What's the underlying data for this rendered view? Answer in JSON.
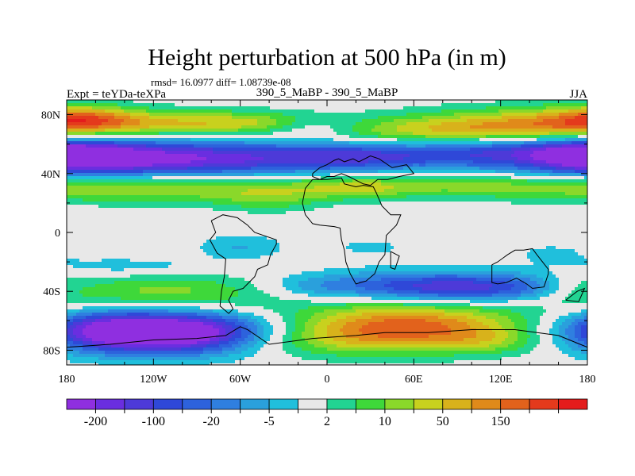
{
  "chart_data": {
    "type": "heatmap",
    "title": "Height perturbation at 500 hPa (in m)",
    "stats_label": "rmsd= 16.0977 diff= 1.08739e-08",
    "left_label": "Expt = teYDa-teXPa",
    "center_label": "390_5_MaBP - 390_5_MaBP",
    "right_label": "JJA",
    "x_range": [
      -180,
      180
    ],
    "y_range": [
      -90,
      90
    ],
    "x_ticks": [
      {
        "value": -180,
        "label": "180"
      },
      {
        "value": -120,
        "label": "120W"
      },
      {
        "value": -60,
        "label": "60W"
      },
      {
        "value": 0,
        "label": "0"
      },
      {
        "value": 60,
        "label": "60E"
      },
      {
        "value": 120,
        "label": "120E"
      },
      {
        "value": 180,
        "label": "180"
      }
    ],
    "y_ticks": [
      {
        "value": 80,
        "label": "80N"
      },
      {
        "value": 40,
        "label": "40N"
      },
      {
        "value": 0,
        "label": "0"
      },
      {
        "value": -40,
        "label": "40S"
      },
      {
        "value": -80,
        "label": "80S"
      }
    ],
    "colorbar": {
      "colors": [
        "#8f2fe0",
        "#6a2ee0",
        "#4d3ad8",
        "#2f48d8",
        "#2d62dc",
        "#2f7fe0",
        "#2aa0dc",
        "#20bfdc",
        "#e8e8e8",
        "#22d492",
        "#3ed83a",
        "#8ad82a",
        "#c8d11e",
        "#d8b21b",
        "#e08a1a",
        "#e2621c",
        "#e43a1c",
        "#e41c1c"
      ],
      "labels": [
        {
          "after": 1,
          "text": "-200"
        },
        {
          "after": 3,
          "text": "-100"
        },
        {
          "after": 5,
          "text": "-20"
        },
        {
          "after": 7,
          "text": "-5"
        },
        {
          "after": 9,
          "text": "2"
        },
        {
          "after": 11,
          "text": "10"
        },
        {
          "after": 13,
          "text": "50"
        },
        {
          "after": 15,
          "text": "150"
        }
      ]
    },
    "anomalies": [
      {
        "lon": -120,
        "lat": 50,
        "slon": 90,
        "slat": 9,
        "amp": -9
      },
      {
        "lon": -175,
        "lat": 52,
        "slon": 30,
        "slat": 8,
        "amp": -5
      },
      {
        "lon": -100,
        "lat": 74,
        "slon": 55,
        "slat": 6,
        "amp": 4
      },
      {
        "lon": -170,
        "lat": 78,
        "slon": 25,
        "slat": 6,
        "amp": 4
      },
      {
        "lon": -40,
        "lat": 75,
        "slon": 35,
        "slat": 5,
        "amp": 2
      },
      {
        "lon": 150,
        "lat": 74,
        "slon": 60,
        "slat": 8,
        "amp": 5
      },
      {
        "lon": 75,
        "lat": 68,
        "slon": 70,
        "slat": 7,
        "amp": 4
      },
      {
        "lon": -10,
        "lat": 72,
        "slon": 25,
        "slat": 5,
        "amp": -3
      },
      {
        "lon": 40,
        "lat": 52,
        "slon": 50,
        "slat": 7,
        "amp": -5
      },
      {
        "lon": 130,
        "lat": 58,
        "slon": 50,
        "slat": 6,
        "amp": -3
      },
      {
        "lon": -115,
        "lat": 30,
        "slon": 80,
        "slat": 7,
        "amp": 4
      },
      {
        "lon": -40,
        "lat": 22,
        "slon": 25,
        "slat": 6,
        "amp": 2
      },
      {
        "lon": 80,
        "lat": 32,
        "slon": 80,
        "slat": 6,
        "amp": 3
      },
      {
        "lon": 20,
        "lat": 30,
        "slon": 25,
        "slat": 5,
        "amp": 2
      },
      {
        "lon": -135,
        "lat": -24,
        "slon": 45,
        "slat": 5,
        "amp": -2
      },
      {
        "lon": -60,
        "lat": -10,
        "slon": 20,
        "slat": 6,
        "amp": -2
      },
      {
        "lon": 30,
        "lat": -10,
        "slon": 25,
        "slat": 6,
        "amp": -1
      },
      {
        "lon": 155,
        "lat": -14,
        "slon": 25,
        "slat": 6,
        "amp": -1
      },
      {
        "lon": -120,
        "lat": -40,
        "slon": 75,
        "slat": 10,
        "amp": 4
      },
      {
        "lon": -10,
        "lat": -38,
        "slon": 20,
        "slat": 6,
        "amp": -1
      },
      {
        "lon": 50,
        "lat": -36,
        "slon": 70,
        "slat": 7,
        "amp": -4
      },
      {
        "lon": 115,
        "lat": -38,
        "slon": 55,
        "slat": 7,
        "amp": -5
      },
      {
        "lon": 172,
        "lat": -38,
        "slon": 20,
        "slat": 8,
        "amp": 2
      },
      {
        "lon": -105,
        "lat": -68,
        "slon": 45,
        "slat": 10,
        "amp": -12
      },
      {
        "lon": -160,
        "lat": -66,
        "slon": 30,
        "slat": 10,
        "amp": -5
      },
      {
        "lon": 55,
        "lat": -64,
        "slon": 55,
        "slat": 11,
        "amp": 8
      },
      {
        "lon": -10,
        "lat": -74,
        "slon": 50,
        "slat": 8,
        "amp": 2
      },
      {
        "lon": 110,
        "lat": -74,
        "slon": 25,
        "slat": 6,
        "amp": 2
      }
    ],
    "coastlines": [
      [
        [
          -10,
          40
        ],
        [
          -5,
          44
        ],
        [
          0,
          46
        ],
        [
          5,
          49
        ],
        [
          8,
          50
        ],
        [
          12,
          48
        ],
        [
          18,
          50
        ],
        [
          22,
          48
        ],
        [
          30,
          52
        ],
        [
          36,
          50
        ],
        [
          45,
          44
        ],
        [
          55,
          46
        ],
        [
          60,
          40
        ],
        [
          50,
          38
        ],
        [
          42,
          36
        ],
        [
          35,
          36
        ],
        [
          30,
          32
        ],
        [
          25,
          33
        ],
        [
          15,
          38
        ],
        [
          10,
          40
        ],
        [
          5,
          38
        ],
        [
          0,
          38
        ],
        [
          -5,
          36
        ],
        [
          -10,
          38
        ],
        [
          -10,
          40
        ]
      ],
      [
        [
          -10,
          36
        ],
        [
          -15,
          30
        ],
        [
          -17,
          20
        ],
        [
          -15,
          12
        ],
        [
          -10,
          6
        ],
        [
          -5,
          5
        ],
        [
          5,
          4
        ],
        [
          9,
          3
        ],
        [
          10,
          -5
        ],
        [
          12,
          -12
        ],
        [
          13,
          -20
        ],
        [
          16,
          -28
        ],
        [
          20,
          -35
        ],
        [
          27,
          -33
        ],
        [
          33,
          -28
        ],
        [
          36,
          -20
        ],
        [
          40,
          -15
        ],
        [
          41,
          -2
        ],
        [
          48,
          5
        ],
        [
          51,
          12
        ],
        [
          44,
          12
        ],
        [
          38,
          18
        ],
        [
          34,
          27
        ],
        [
          32,
          31
        ],
        [
          25,
          32
        ],
        [
          20,
          31
        ],
        [
          12,
          33
        ],
        [
          10,
          37
        ],
        [
          0,
          36
        ],
        [
          -10,
          36
        ]
      ],
      [
        [
          -80,
          8
        ],
        [
          -77,
          0
        ],
        [
          -81,
          -5
        ],
        [
          -76,
          -14
        ],
        [
          -70,
          -18
        ],
        [
          -71,
          -30
        ],
        [
          -73,
          -40
        ],
        [
          -74,
          -50
        ],
        [
          -68,
          -55
        ],
        [
          -65,
          -52
        ],
        [
          -68,
          -46
        ],
        [
          -65,
          -40
        ],
        [
          -58,
          -38
        ],
        [
          -50,
          -30
        ],
        [
          -48,
          -25
        ],
        [
          -41,
          -22
        ],
        [
          -39,
          -15
        ],
        [
          -35,
          -8
        ],
        [
          -35,
          -5
        ],
        [
          -50,
          0
        ],
        [
          -55,
          5
        ],
        [
          -62,
          10
        ],
        [
          -72,
          12
        ],
        [
          -80,
          8
        ]
      ],
      [
        [
          114,
          -22
        ],
        [
          114,
          -34
        ],
        [
          118,
          -35
        ],
        [
          124,
          -34
        ],
        [
          131,
          -31
        ],
        [
          138,
          -35
        ],
        [
          142,
          -38
        ],
        [
          150,
          -37
        ],
        [
          153,
          -28
        ],
        [
          153,
          -25
        ],
        [
          145,
          -15
        ],
        [
          142,
          -11
        ],
        [
          136,
          -12
        ],
        [
          130,
          -12
        ],
        [
          125,
          -15
        ],
        [
          118,
          -20
        ],
        [
          114,
          -22
        ]
      ],
      [
        [
          44,
          -13
        ],
        [
          50,
          -16
        ],
        [
          47,
          -25
        ],
        [
          44,
          -24
        ],
        [
          44,
          -13
        ]
      ],
      [
        [
          165,
          -46
        ],
        [
          173,
          -40
        ],
        [
          178,
          -38
        ],
        [
          174,
          -47
        ],
        [
          165,
          -46
        ]
      ],
      [
        [
          -180,
          -78
        ],
        [
          -150,
          -76
        ],
        [
          -120,
          -73
        ],
        [
          -90,
          -72
        ],
        [
          -70,
          -70
        ],
        [
          -60,
          -64
        ],
        [
          -55,
          -66
        ],
        [
          -40,
          -76
        ],
        [
          -10,
          -72
        ],
        [
          20,
          -70
        ],
        [
          40,
          -68
        ],
        [
          70,
          -68
        ],
        [
          100,
          -66
        ],
        [
          130,
          -66
        ],
        [
          160,
          -70
        ],
        [
          175,
          -76
        ],
        [
          180,
          -78
        ]
      ]
    ]
  }
}
